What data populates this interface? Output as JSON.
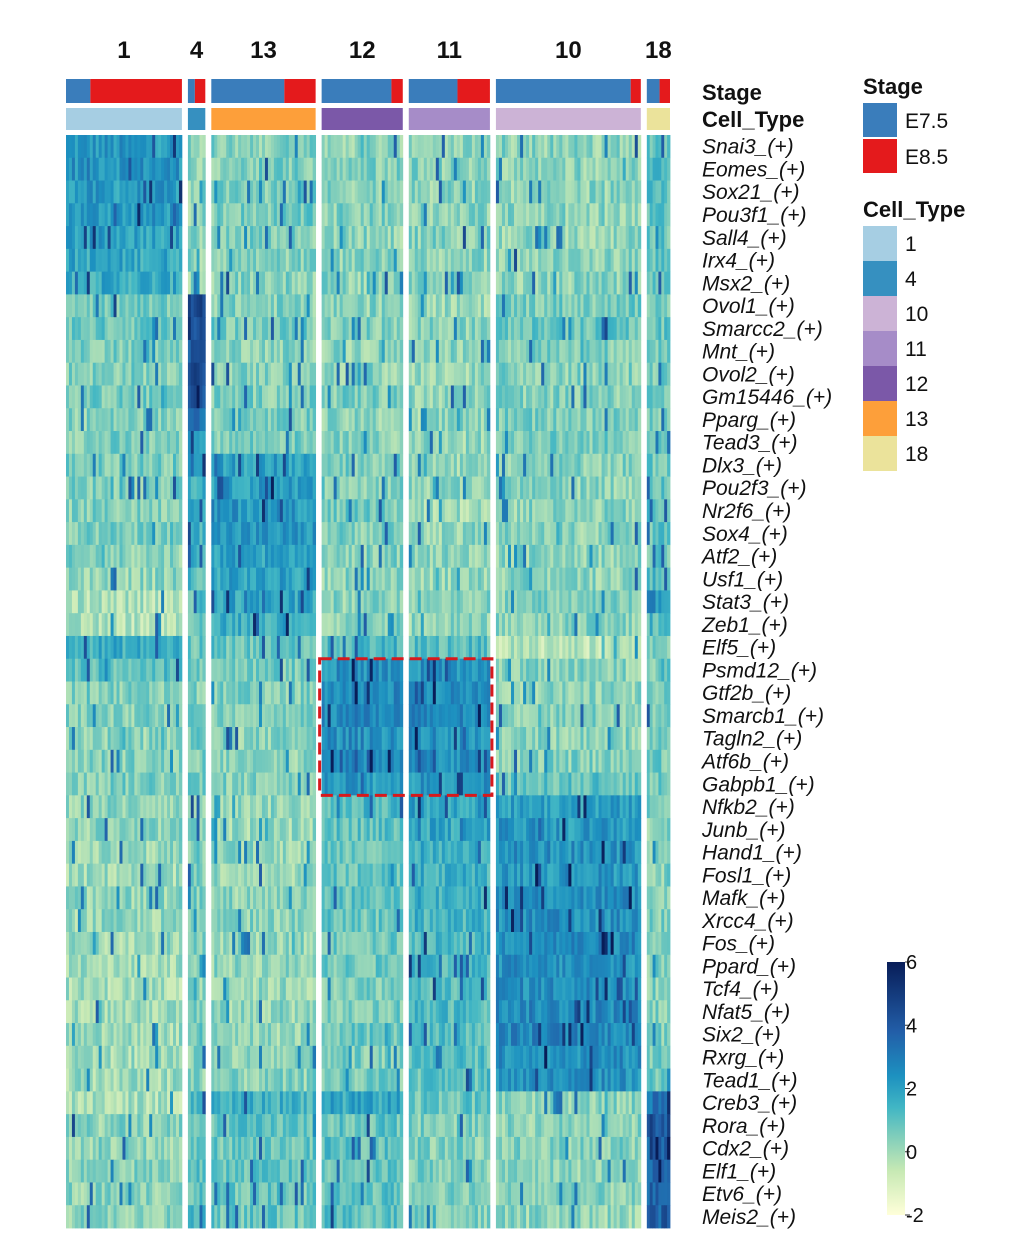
{
  "colors": {
    "stage": {
      "E7.5": "#3a7dbb",
      "E8.5": "#e41a1c"
    },
    "cell_type": {
      "1": "#a6cee3",
      "4": "#3690c0",
      "10": "#ccb3d6",
      "11": "#a68cc8",
      "12": "#7b58a8",
      "13": "#fd9f3a",
      "18": "#ebe39b"
    },
    "gradient": [
      "#ffffd9",
      "#c7e9b4",
      "#7fcdbb",
      "#41b6c4",
      "#1d91c0",
      "#225ea8",
      "#081d58"
    ],
    "highlight_box": "#d7191c"
  },
  "chart_data": {
    "type": "heatmap",
    "value_range": [
      -2,
      6
    ],
    "clusters": [
      {
        "label": "1",
        "cells": 100,
        "e85_fraction": 0.79
      },
      {
        "label": "4",
        "cells": 15,
        "e85_fraction": 0.6
      },
      {
        "label": "13",
        "cells": 90,
        "e85_fraction": 0.3
      },
      {
        "label": "12",
        "cells": 70,
        "e85_fraction": 0.14
      },
      {
        "label": "11",
        "cells": 70,
        "e85_fraction": 0.4
      },
      {
        "label": "10",
        "cells": 125,
        "e85_fraction": 0.07
      },
      {
        "label": "18",
        "cells": 20,
        "e85_fraction": 0.45
      }
    ],
    "regulons": [
      "Snai3_(+)",
      "Eomes_(+)",
      "Sox21_(+)",
      "Pou3f1_(+)",
      "Sall4_(+)",
      "Irx4_(+)",
      "Msx2_(+)",
      "Ovol1_(+)",
      "Smarcc2_(+)",
      "Mnt_(+)",
      "Ovol2_(+)",
      "Gm15446_(+)",
      "Pparg_(+)",
      "Tead3_(+)",
      "Dlx3_(+)",
      "Pou2f3_(+)",
      "Nr2f6_(+)",
      "Sox4_(+)",
      "Atf2_(+)",
      "Usf1_(+)",
      "Stat3_(+)",
      "Zeb1_(+)",
      "Elf5_(+)",
      "Psmd12_(+)",
      "Gtf2b_(+)",
      "Smarcb1_(+)",
      "Tagln2_(+)",
      "Atf6b_(+)",
      "Gabpb1_(+)",
      "Nfkb2_(+)",
      "Junb_(+)",
      "Hand1_(+)",
      "Fosl1_(+)",
      "Mafk_(+)",
      "Xrcc4_(+)",
      "Fos_(+)",
      "Ppard_(+)",
      "Tcf4_(+)",
      "Nfat5_(+)",
      "Six2_(+)",
      "Rxrg_(+)",
      "Tead1_(+)",
      "Creb3_(+)",
      "Rora_(+)",
      "Cdx2_(+)",
      "Elf1_(+)",
      "Etv6_(+)",
      "Meis2_(+)"
    ],
    "mean_activity": [
      [
        2.2,
        0.2,
        0.4,
        0.3,
        0.4,
        0.3,
        1.0
      ],
      [
        2.4,
        0.3,
        0.5,
        0.4,
        0.4,
        0.3,
        1.0
      ],
      [
        2.1,
        0.3,
        0.5,
        0.4,
        0.3,
        0.3,
        1.0
      ],
      [
        2.2,
        0.3,
        0.6,
        0.4,
        0.3,
        0.3,
        1.0
      ],
      [
        2.0,
        0.2,
        0.5,
        0.3,
        0.4,
        0.2,
        0.9
      ],
      [
        1.8,
        0.2,
        0.4,
        0.3,
        0.3,
        0.3,
        0.9
      ],
      [
        1.7,
        0.2,
        0.4,
        0.3,
        0.4,
        0.3,
        0.8
      ],
      [
        0.6,
        4.5,
        0.4,
        0.3,
        0.1,
        0.6,
        0.7
      ],
      [
        0.8,
        4.0,
        0.6,
        0.5,
        0.3,
        0.9,
        0.8
      ],
      [
        0.6,
        4.2,
        0.4,
        0.3,
        0.3,
        0.5,
        0.7
      ],
      [
        0.5,
        4.6,
        0.4,
        0.3,
        0.2,
        0.4,
        0.6
      ],
      [
        0.6,
        4.0,
        0.5,
        0.5,
        0.3,
        0.4,
        0.6
      ],
      [
        0.4,
        3.0,
        0.5,
        0.2,
        0.2,
        0.5,
        0.5
      ],
      [
        0.5,
        2.5,
        0.6,
        0.4,
        0.2,
        0.6,
        0.6
      ],
      [
        0.6,
        2.6,
        2.0,
        0.6,
        0.2,
        0.4,
        0.8
      ],
      [
        0.5,
        1.4,
        2.1,
        0.5,
        0.3,
        0.3,
        0.8
      ],
      [
        0.4,
        1.6,
        2.3,
        0.6,
        0.0,
        0.3,
        0.9
      ],
      [
        0.6,
        1.4,
        2.2,
        0.5,
        0.2,
        0.3,
        0.9
      ],
      [
        0.4,
        1.3,
        2.0,
        0.4,
        0.3,
        0.3,
        0.9
      ],
      [
        0.2,
        1.2,
        1.9,
        0.3,
        0.2,
        0.3,
        1.1
      ],
      [
        -0.2,
        1.0,
        1.9,
        0.3,
        0.3,
        0.4,
        2.3
      ],
      [
        -0.3,
        1.0,
        1.7,
        0.4,
        0.2,
        0.3,
        1.2
      ],
      [
        1.6,
        0.8,
        0.9,
        1.3,
        1.1,
        -0.4,
        0.7
      ],
      [
        1.0,
        0.7,
        0.6,
        2.4,
        2.3,
        0.3,
        0.6
      ],
      [
        0.5,
        0.5,
        0.4,
        2.5,
        2.5,
        0.2,
        0.6
      ],
      [
        0.4,
        0.5,
        0.5,
        2.6,
        2.6,
        0.4,
        0.6
      ],
      [
        0.3,
        0.5,
        0.3,
        2.5,
        2.4,
        0.3,
        0.6
      ],
      [
        0.4,
        0.6,
        0.3,
        2.4,
        2.5,
        0.4,
        0.6
      ],
      [
        0.5,
        0.6,
        0.4,
        2.1,
        2.3,
        0.9,
        0.6
      ],
      [
        0.3,
        0.5,
        0.2,
        1.2,
        1.9,
        2.0,
        0.5
      ],
      [
        0.2,
        0.4,
        0.1,
        1.0,
        1.8,
        2.2,
        0.4
      ],
      [
        0.1,
        0.5,
        0.2,
        0.9,
        1.6,
        2.4,
        0.5
      ],
      [
        0.0,
        0.4,
        0.2,
        0.8,
        1.5,
        2.3,
        0.4
      ],
      [
        0.2,
        0.6,
        0.3,
        0.9,
        1.5,
        2.5,
        0.4
      ],
      [
        0.1,
        0.5,
        0.3,
        0.8,
        1.4,
        2.4,
        0.4
      ],
      [
        0.1,
        0.4,
        0.2,
        0.7,
        1.3,
        2.6,
        0.4
      ],
      [
        0.0,
        0.4,
        0.2,
        0.7,
        1.3,
        2.4,
        0.4
      ],
      [
        -0.1,
        0.3,
        0.1,
        0.6,
        1.1,
        2.5,
        0.4
      ],
      [
        0.0,
        0.4,
        0.2,
        0.6,
        1.2,
        2.6,
        0.5
      ],
      [
        0.0,
        0.3,
        0.2,
        0.7,
        1.2,
        2.7,
        0.5
      ],
      [
        -0.1,
        0.3,
        0.2,
        0.5,
        1.0,
        2.5,
        0.5
      ],
      [
        0.0,
        0.4,
        0.3,
        0.6,
        1.0,
        2.4,
        0.6
      ],
      [
        -0.2,
        1.5,
        1.5,
        1.8,
        0.8,
        0.3,
        3.0
      ],
      [
        0.3,
        1.0,
        0.9,
        0.9,
        0.5,
        0.3,
        4.2
      ],
      [
        0.2,
        1.0,
        0.8,
        1.0,
        0.4,
        0.4,
        3.8
      ],
      [
        0.4,
        1.1,
        0.9,
        0.8,
        0.5,
        0.3,
        3.5
      ],
      [
        0.3,
        1.0,
        0.8,
        0.9,
        0.6,
        0.3,
        3.6
      ],
      [
        0.4,
        1.2,
        0.8,
        1.0,
        0.5,
        0.2,
        3.8
      ]
    ],
    "highlight": {
      "clusters": [
        "12",
        "11"
      ],
      "regulons": [
        "Psmd12_(+)",
        "Gabpb1_(+)"
      ]
    },
    "annotations": {
      "stage_title": "Stage",
      "cell_type_title": "Cell_Type"
    },
    "legend": {
      "stage": {
        "title": "Stage",
        "items": [
          "E7.5",
          "E8.5"
        ]
      },
      "cell_type": {
        "title": "Cell_Type",
        "items": [
          "1",
          "4",
          "10",
          "11",
          "12",
          "13",
          "18"
        ]
      }
    },
    "colorbar": {
      "ticks": [
        6,
        4,
        2,
        0,
        -2
      ]
    }
  }
}
